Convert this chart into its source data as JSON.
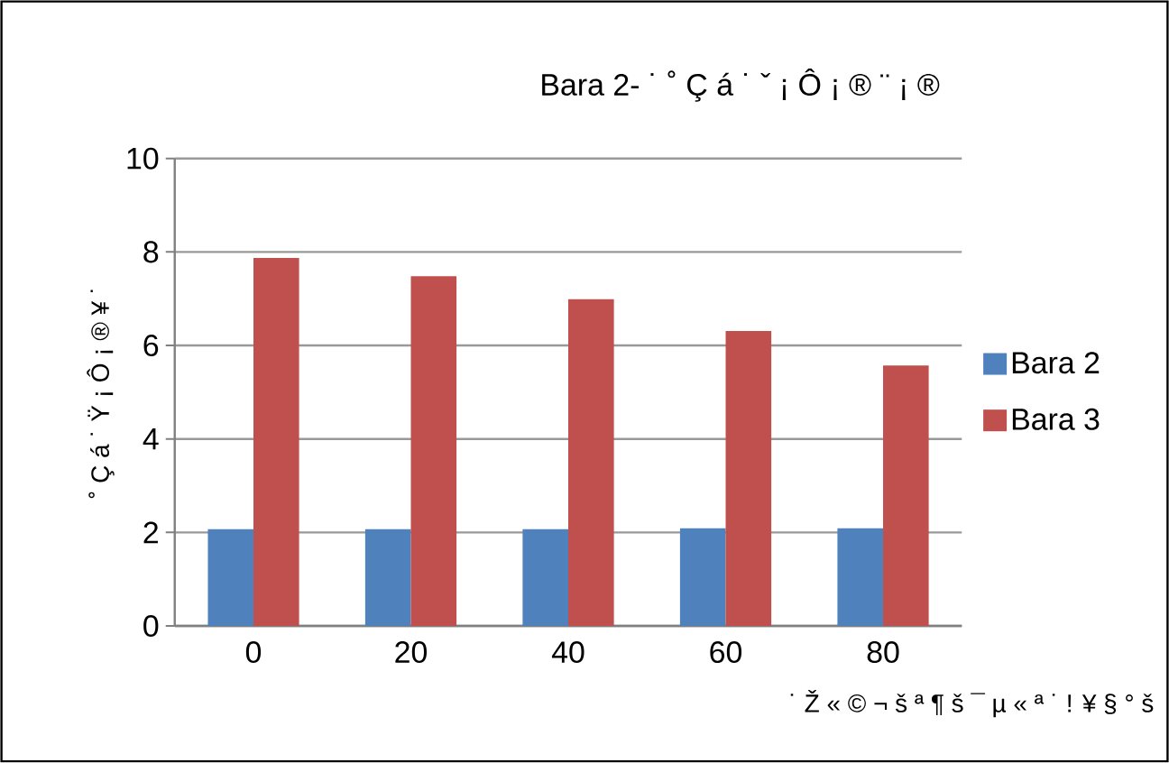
{
  "chart_data": {
    "type": "bar",
    "title": "Bara 2- ˙ ˚ Ç á ˙ ˇ ¡ Ô ¡ ® ¨ ¡ ®",
    "xlabel": "˙ Ž « © ¬ š ª ¶ š ¯ µ « ª ˙ ! ¥ § ° š",
    "ylabel": "˚ Ç á ˙ Ÿ ¡ Ô ¡ ® ¥ ˙",
    "categories": [
      "0",
      "20",
      "40",
      "60",
      "80"
    ],
    "series": [
      {
        "name": "Bara 2",
        "color": "#4f81bd",
        "values": [
          2.07,
          2.07,
          2.07,
          2.09,
          2.09
        ]
      },
      {
        "name": "Bara 3",
        "color": "#c0504d",
        "values": [
          7.87,
          7.48,
          6.99,
          6.31,
          5.57
        ]
      }
    ],
    "ylim": [
      0,
      10
    ],
    "yticks": [
      0,
      2,
      4,
      6,
      8,
      10
    ],
    "grid": "y",
    "legend": "right"
  }
}
